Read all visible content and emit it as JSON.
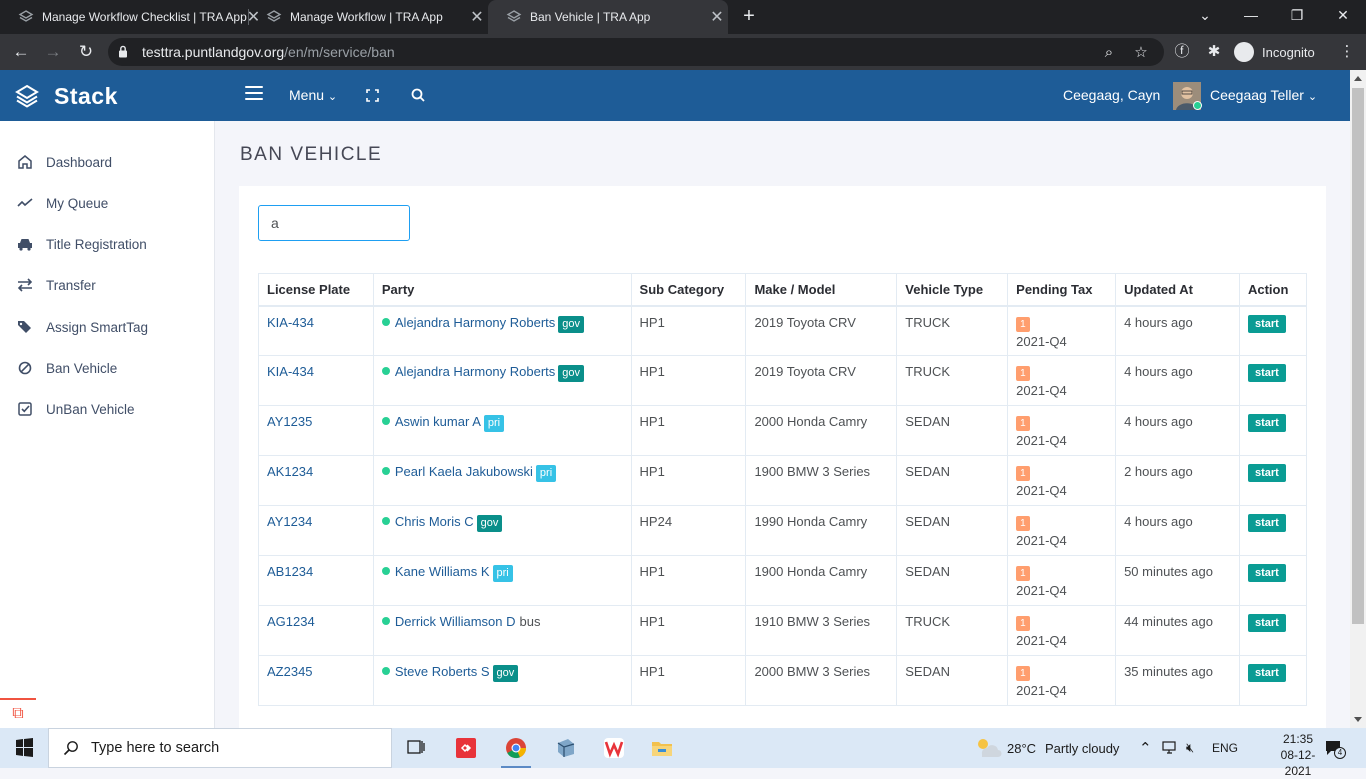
{
  "browser": {
    "tabs": [
      {
        "title": "Manage Workflow Checklist | TRA App"
      },
      {
        "title": "Manage Workflow | TRA App"
      },
      {
        "title": "Ban Vehicle | TRA App"
      }
    ],
    "url_host": "testtra.puntlandgov.org",
    "url_path": "/en/m/service/ban",
    "incognito_label": "Incognito"
  },
  "app": {
    "brand": "Stack",
    "menu_label": "Menu",
    "user_name": "Ceegaag, Cayn",
    "user_role": "Ceegaag Teller"
  },
  "sidebar": {
    "items": [
      {
        "label": "Dashboard",
        "icon": "home-icon"
      },
      {
        "label": "My Queue",
        "icon": "trend-icon"
      },
      {
        "label": "Title Registration",
        "icon": "car-icon"
      },
      {
        "label": "Transfer",
        "icon": "exchange-icon"
      },
      {
        "label": "Assign SmartTag",
        "icon": "tags-icon"
      },
      {
        "label": "Ban Vehicle",
        "icon": "ban-icon"
      },
      {
        "label": "UnBan Vehicle",
        "icon": "check-square-icon"
      }
    ]
  },
  "page": {
    "title": "BAN VEHICLE",
    "search_value": "a"
  },
  "table": {
    "headers": [
      "License Plate",
      "Party",
      "Sub Category",
      "Make / Model",
      "Vehicle Type",
      "Pending Tax",
      "Updated At",
      "Action"
    ],
    "rows": [
      {
        "plate": "KIA-434",
        "party": "Alejandra Harmony Roberts",
        "tag": "gov",
        "sub": "HP1",
        "model": "2019 Toyota CRV",
        "type": "TRUCK",
        "tax_count": "1",
        "tax_q": "2021-Q4",
        "updated": "4 hours ago",
        "action": "start"
      },
      {
        "plate": "KIA-434",
        "party": "Alejandra Harmony Roberts",
        "tag": "gov",
        "sub": "HP1",
        "model": "2019 Toyota CRV",
        "type": "TRUCK",
        "tax_count": "1",
        "tax_q": "2021-Q4",
        "updated": "4 hours ago",
        "action": "start"
      },
      {
        "plate": "AY1235",
        "party": "Aswin kumar A",
        "tag": "pri",
        "sub": "HP1",
        "model": "2000 Honda Camry",
        "type": "SEDAN",
        "tax_count": "1",
        "tax_q": "2021-Q4",
        "updated": "4 hours ago",
        "action": "start"
      },
      {
        "plate": "AK1234",
        "party": "Pearl Kaela Jakubowski",
        "tag": "pri",
        "sub": "HP1",
        "model": "1900 BMW 3 Series",
        "type": "SEDAN",
        "tax_count": "1",
        "tax_q": "2021-Q4",
        "updated": "2 hours ago",
        "action": "start"
      },
      {
        "plate": "AY1234",
        "party": "Chris Moris C",
        "tag": "gov",
        "sub": "HP24",
        "model": "1990 Honda Camry",
        "type": "SEDAN",
        "tax_count": "1",
        "tax_q": "2021-Q4",
        "updated": "4 hours ago",
        "action": "start"
      },
      {
        "plate": "AB1234",
        "party": "Kane Williams K",
        "tag": "pri",
        "sub": "HP1",
        "model": "1900 Honda Camry",
        "type": "SEDAN",
        "tax_count": "1",
        "tax_q": "2021-Q4",
        "updated": "50 minutes ago",
        "action": "start"
      },
      {
        "plate": "AG1234",
        "party": "Derrick Williamson D",
        "tag": "bus",
        "sub": "HP1",
        "model": "1910 BMW 3 Series",
        "type": "TRUCK",
        "tax_count": "1",
        "tax_q": "2021-Q4",
        "updated": "44 minutes ago",
        "action": "start"
      },
      {
        "plate": "AZ2345",
        "party": "Steve Roberts S",
        "tag": "gov",
        "sub": "HP1",
        "model": "2000 BMW 3 Series",
        "type": "SEDAN",
        "tax_count": "1",
        "tax_q": "2021-Q4",
        "updated": "35 minutes ago",
        "action": "start"
      }
    ]
  },
  "taskbar": {
    "search_placeholder": "Type here to search",
    "weather_temp": "28°C",
    "weather_text": "Partly cloudy",
    "language": "ENG",
    "time": "21:35",
    "date": "08-12-2021",
    "notifications": "4"
  },
  "colors": {
    "header": "#1e5c97",
    "gov_badge": "#0a8f8a",
    "pri_badge": "#36c2e6",
    "tax_badge": "#ff9e6e",
    "start_button": "#0a9c94",
    "online_dot": "#28d094"
  }
}
